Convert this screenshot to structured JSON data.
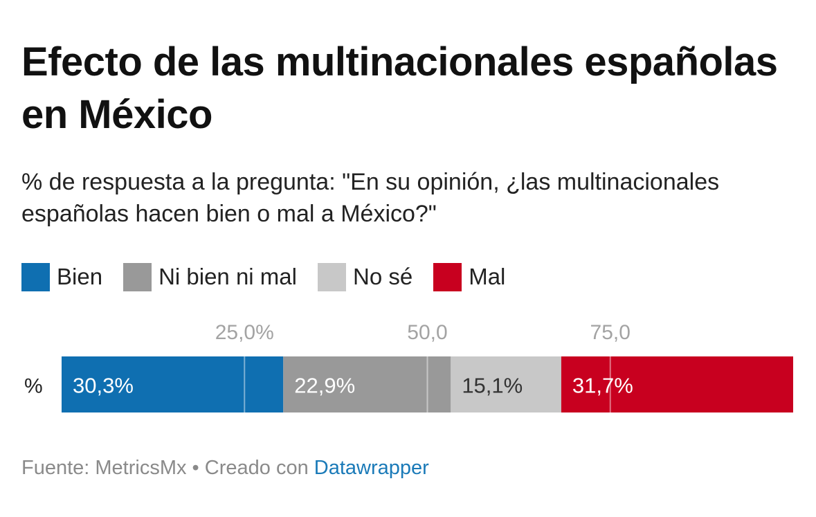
{
  "title": "Efecto de las multinacionales españolas en México",
  "subtitle": "% de respuesta a la pregunta: \"En su opinión, ¿las multinacionales españolas hacen bien o mal a México?\"",
  "legend": [
    {
      "label": "Bien",
      "color": "#0f6fb1"
    },
    {
      "label": "Ni bien ni mal",
      "color": "#999999"
    },
    {
      "label": "No sé",
      "color": "#c8c8c8"
    },
    {
      "label": "Mal",
      "color": "#c8001f"
    }
  ],
  "footer": {
    "source": "Fuente: MetricsMx",
    "separator": " • ",
    "created": "Creado con ",
    "link": "Datawrapper"
  },
  "chart_data": {
    "type": "bar",
    "orientation": "horizontal-stacked",
    "categories": [
      "%"
    ],
    "series": [
      {
        "name": "Bien",
        "values": [
          30.3
        ],
        "label": "30,3%",
        "color": "#0f6fb1",
        "label_color": "#ffffff"
      },
      {
        "name": "Ni bien ni mal",
        "values": [
          22.9
        ],
        "label": "22,9%",
        "color": "#999999",
        "label_color": "#ffffff"
      },
      {
        "name": "No sé",
        "values": [
          15.1
        ],
        "label": "15,1%",
        "color": "#c8c8c8",
        "label_color": "#333333"
      },
      {
        "name": "Mal",
        "values": [
          31.7
        ],
        "label": "31,7%",
        "color": "#c8001f",
        "label_color": "#ffffff"
      }
    ],
    "xlim": [
      0,
      100
    ],
    "ticks": [
      {
        "value": 25,
        "label": "25,0%"
      },
      {
        "value": 50,
        "label": "50,0"
      },
      {
        "value": 75,
        "label": "75,0"
      }
    ],
    "grid": true,
    "legend_position": "top-left"
  }
}
